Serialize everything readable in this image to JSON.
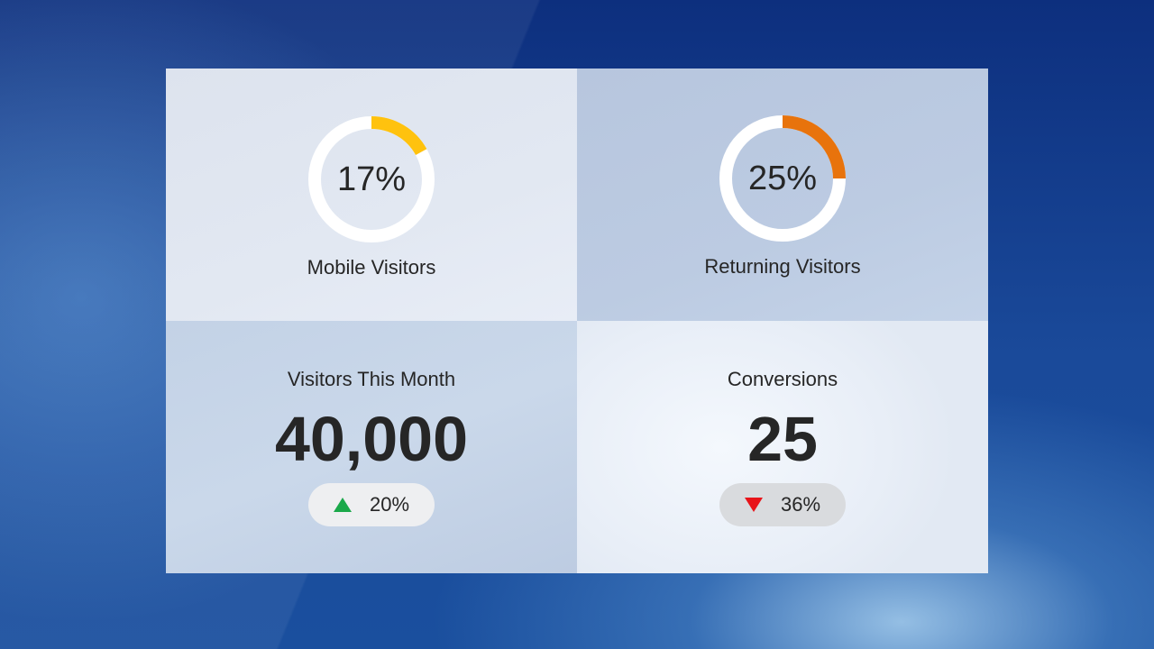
{
  "dashboard": {
    "mobile": {
      "percent_text": "17%",
      "percent_value": 17,
      "label": "Mobile Visitors",
      "ring_color": "#ffc20e",
      "track_color": "#ffffff"
    },
    "returning": {
      "percent_text": "25%",
      "percent_value": 25,
      "label": "Returning Visitors",
      "ring_color": "#e8730c",
      "track_color": "#ffffff"
    },
    "visitors_month": {
      "title": "Visitors This Month",
      "value": "40,000",
      "change": "20%",
      "direction": "up",
      "arrow_icon": "triangle-up-icon",
      "arrow_color": "#1aa84a"
    },
    "conversions": {
      "title": "Conversions",
      "value": "25",
      "change": "36%",
      "direction": "down",
      "arrow_icon": "triangle-down-icon",
      "arrow_color": "#e8141a"
    }
  }
}
